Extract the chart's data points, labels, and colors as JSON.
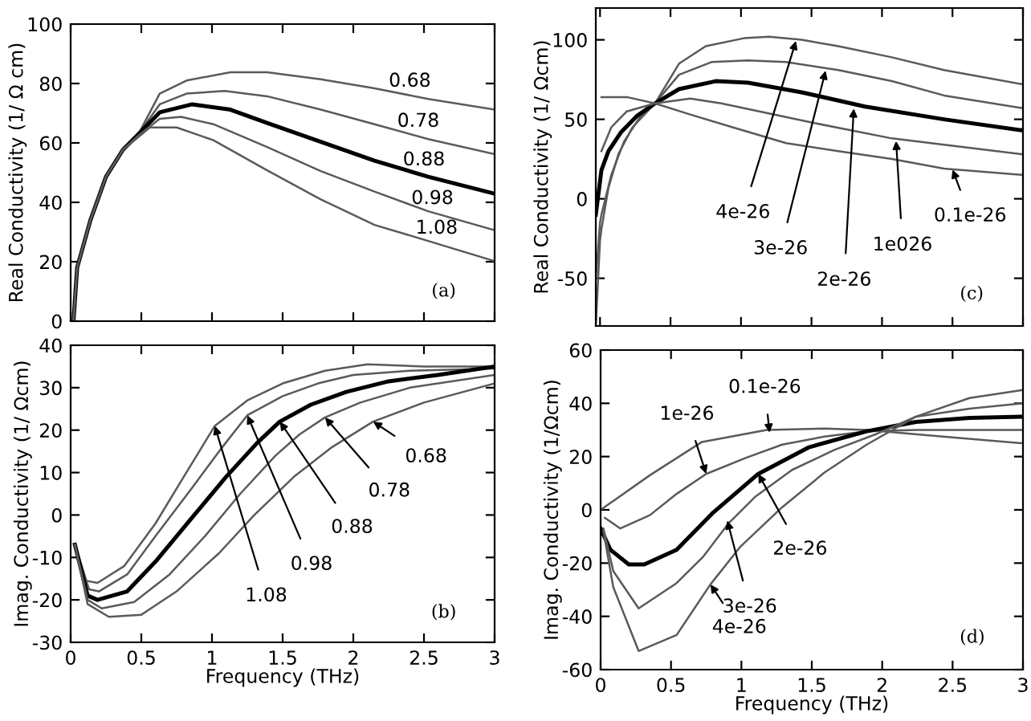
{
  "chart_data": [
    {
      "type": "line",
      "ylabel": "Real Conductivity (1/ Ω cm)",
      "xlim": [
        0,
        3
      ],
      "ylim": [
        0,
        100
      ],
      "xticks": [
        0,
        0.5,
        1,
        1.5,
        2,
        2.5,
        3
      ],
      "yticks": [
        0,
        20,
        40,
        60,
        80,
        100
      ],
      "tick_labels": "y",
      "series": [
        {
          "color": "#5a5a5a",
          "x": [
            0.02,
            0.046,
            0.14,
            0.25,
            0.37,
            0.48,
            0.63,
            0.82,
            1.13,
            1.39,
            1.77,
            2.15,
            2.53,
            3
          ],
          "values": [
            0,
            18,
            34,
            48.6,
            57.7,
            63,
            76.6,
            81,
            83.8,
            83.8,
            81.4,
            78.4,
            74.8,
            71.2
          ]
        },
        {
          "color": "#5a5a5a",
          "x": [
            0.02,
            0.046,
            0.14,
            0.25,
            0.37,
            0.48,
            0.63,
            0.82,
            1.09,
            1.39,
            1.77,
            2.15,
            2.53,
            3
          ],
          "values": [
            0,
            18,
            34,
            48.6,
            57.7,
            63,
            73,
            76.6,
            77.5,
            75.7,
            71.2,
            66.3,
            61.3,
            56.2
          ]
        },
        {
          "color": "#000000",
          "x": [
            0.02,
            0.046,
            0.14,
            0.25,
            0.37,
            0.48,
            0.63,
            0.86,
            1.13,
            1.39,
            1.77,
            2.15,
            2.53,
            3
          ],
          "values": [
            0,
            18,
            34,
            48.6,
            57.7,
            63,
            70.3,
            73,
            71.2,
            66.7,
            60.4,
            54,
            48.6,
            42.9
          ]
        },
        {
          "color": "#5a5a5a",
          "x": [
            0.02,
            0.046,
            0.14,
            0.25,
            0.37,
            0.48,
            0.63,
            0.78,
            1.01,
            1.39,
            1.77,
            2.15,
            2.53,
            3
          ],
          "values": [
            0,
            18,
            34,
            48.6,
            57.7,
            62.5,
            68.1,
            68.8,
            66.3,
            58.6,
            50.5,
            43.6,
            37,
            30.6
          ]
        },
        {
          "color": "#5a5a5a",
          "x": [
            0.02,
            0.046,
            0.14,
            0.25,
            0.37,
            0.48,
            0.56,
            0.75,
            1.01,
            1.39,
            1.77,
            2.15,
            2.53,
            3
          ],
          "values": [
            0,
            18,
            34,
            48.6,
            57.7,
            62,
            65.2,
            65.2,
            60.9,
            50.8,
            41,
            32.4,
            27,
            20.2
          ]
        }
      ],
      "annotations": [
        "(a)",
        {
          "text": "0.68",
          "x": 2.4,
          "y": 76
        },
        {
          "text": "0.78",
          "x": 2.46,
          "y": 62.5
        },
        {
          "text": "0.88",
          "x": 2.5,
          "y": 49.5
        },
        {
          "text": "0.98",
          "x": 2.56,
          "y": 36.5
        },
        {
          "text": "1.08",
          "x": 2.59,
          "y": 26.5
        }
      ]
    },
    {
      "type": "line",
      "ylabel": "Real Conductivity (1/ Ωcm)",
      "xlim": [
        -0.03,
        3
      ],
      "ylim": [
        -80,
        120
      ],
      "xticks": [
        0,
        0.5,
        1,
        1.5,
        2,
        2.5,
        3
      ],
      "yticks": [
        -50,
        0,
        50,
        100
      ],
      "tick_labels": "y",
      "series": [
        {
          "color": "#5a5a5a",
          "x": [
            -0.03,
            0,
            0.01,
            0.06,
            0.13,
            0.23,
            0.39,
            0.56,
            0.75,
            1.02,
            1.2,
            1.43,
            1.69,
            2.07,
            2.44,
            3
          ],
          "values": [
            -80,
            -26,
            -19,
            7,
            28,
            45,
            60,
            85,
            96,
            101,
            102,
            100,
            96,
            89,
            81,
            72
          ]
        },
        {
          "color": "#5a5a5a",
          "x": [
            -0.03,
            0,
            0.01,
            0.08,
            0.17,
            0.28,
            0.39,
            0.56,
            0.79,
            1.05,
            1.32,
            1.69,
            2.07,
            2.44,
            3
          ],
          "values": [
            -50,
            -15,
            -10,
            15,
            36,
            51,
            60,
            78,
            86,
            87,
            86,
            81,
            74,
            65,
            57
          ]
        },
        {
          "color": "#000000",
          "x": [
            -0.03,
            0.01,
            0.06,
            0.15,
            0.26,
            0.39,
            0.56,
            0.82,
            1.05,
            1.43,
            1.88,
            2.44,
            3
          ],
          "values": [
            -10,
            18,
            30,
            42,
            52,
            60,
            69,
            74,
            73,
            67,
            58,
            50,
            43
          ]
        },
        {
          "color": "#5a5a5a",
          "x": [
            0.01,
            0.08,
            0.19,
            0.39,
            0.64,
            0.86,
            1.13,
            1.5,
            2.07,
            2.44,
            3
          ],
          "values": [
            30,
            45,
            55,
            60,
            63,
            60,
            55,
            48,
            38,
            34,
            28
          ]
        },
        {
          "color": "#5a5a5a",
          "x": [
            0.01,
            0.19,
            0.39,
            0.64,
            0.94,
            1.32,
            1.69,
            2.07,
            2.44,
            3
          ],
          "values": [
            64,
            64,
            60,
            53,
            45,
            35,
            30,
            25,
            19,
            15
          ]
        }
      ],
      "annotations": [
        "(c)",
        {
          "text": "4e-26",
          "x": 1.39,
          "y": 99.3
        },
        {
          "text": "3e-26",
          "x": 1.6,
          "y": 80.6
        },
        {
          "text": "2e-26",
          "x": 1.8,
          "y": 56.8
        },
        {
          "text": "1e026",
          "x": 2.1,
          "y": 36.4
        },
        {
          "text": "0.1e-26",
          "x": 2.5,
          "y": 18.4
        }
      ]
    },
    {
      "type": "line",
      "ylabel": "Imag. Conductivity (1/ Ωcm)",
      "xlabel": "Frequency (THz)",
      "xlim": [
        0,
        3
      ],
      "ylim": [
        -30,
        40
      ],
      "xticks": [
        0,
        0.5,
        1,
        1.5,
        2,
        2.5,
        3
      ],
      "yticks": [
        -30,
        -20,
        -10,
        0,
        10,
        20,
        30,
        40
      ],
      "series": [
        {
          "color": "#5a5a5a",
          "x": [
            0.03,
            0.11,
            0.19,
            0.38,
            0.6,
            0.8,
            1.02,
            1.25,
            1.5,
            1.8,
            2.1,
            2.5,
            3
          ],
          "values": [
            -7,
            -15.5,
            -16,
            -12,
            -2,
            9,
            21,
            27,
            31,
            34,
            35.5,
            35,
            35
          ]
        },
        {
          "color": "#5a5a5a",
          "x": [
            0.03,
            0.13,
            0.2,
            0.4,
            0.6,
            0.85,
            1.05,
            1.25,
            1.5,
            1.75,
            2,
            2.4,
            3
          ],
          "values": [
            -7,
            -17.5,
            -18,
            -14,
            -5,
            6,
            15,
            23.5,
            28,
            31,
            33,
            34,
            34.5
          ]
        },
        {
          "color": "#000000",
          "x": [
            0.03,
            0.12,
            0.19,
            0.4,
            0.6,
            0.85,
            1.1,
            1.32,
            1.48,
            1.7,
            1.95,
            2.25,
            2.6,
            3
          ],
          "values": [
            -7,
            -19,
            -20,
            -18,
            -11,
            -1,
            9,
            17,
            22,
            26,
            29,
            31.5,
            33,
            35
          ]
        },
        {
          "color": "#5a5a5a",
          "x": [
            0.03,
            0.12,
            0.22,
            0.45,
            0.7,
            0.95,
            1.2,
            1.45,
            1.62,
            1.8,
            2.05,
            2.4,
            3
          ],
          "values": [
            -7,
            -20,
            -22,
            -20.5,
            -14,
            -5,
            5,
            14,
            19,
            23,
            26.5,
            30,
            33
          ]
        },
        {
          "color": "#5a5a5a",
          "x": [
            0.03,
            0.12,
            0.27,
            0.5,
            0.75,
            1.05,
            1.3,
            1.58,
            1.85,
            2.14,
            2.5,
            3
          ],
          "values": [
            -7,
            -21,
            -24,
            -23.5,
            -18,
            -9,
            0,
            9,
            16,
            22,
            26.5,
            31
          ]
        }
      ],
      "annotations": [
        "(b)",
        {
          "text": "1.08",
          "x": 1.02,
          "y": 21
        },
        {
          "text": "0.98",
          "x": 1.25,
          "y": 23.5
        },
        {
          "text": "0.88",
          "x": 1.48,
          "y": 22
        },
        {
          "text": "0.78",
          "x": 1.8,
          "y": 23
        },
        {
          "text": "0.68",
          "x": 2.14,
          "y": 22
        }
      ]
    },
    {
      "type": "line",
      "ylabel": "Imag. Conductivity (1/Ωcm)",
      "xlabel": "Frequency (THz)",
      "xlim": [
        0,
        3
      ],
      "ylim": [
        -60,
        60
      ],
      "xticks": [
        0,
        0.5,
        1,
        1.5,
        2,
        2.5,
        3
      ],
      "yticks": [
        -60,
        -40,
        -20,
        0,
        20,
        40,
        60
      ],
      "series": [
        {
          "color": "#5a5a5a",
          "x": [
            0,
            0.35,
            0.72,
            1.18,
            1.59,
            1.89,
            2.43,
            3
          ],
          "values": [
            0,
            13,
            25.5,
            30,
            30.5,
            30,
            27.5,
            25
          ]
        },
        {
          "color": "#5a5a5a",
          "x": [
            0.03,
            0.14,
            0.35,
            0.54,
            0.75,
            1.03,
            1.29,
            1.59,
            1.89,
            2.24,
            3
          ],
          "values": [
            -3,
            -7,
            -2,
            6,
            13.5,
            19.5,
            24.5,
            27.5,
            29.5,
            30,
            30
          ]
        },
        {
          "color": "#000000",
          "x": [
            0,
            0.07,
            0.2,
            0.31,
            0.54,
            0.8,
            1.12,
            1.48,
            1.89,
            2.24,
            2.62,
            3
          ],
          "values": [
            -7,
            -15,
            -20.5,
            -20.5,
            -15,
            -1,
            13.5,
            23.5,
            29.5,
            33,
            34.5,
            35
          ]
        },
        {
          "color": "#5a5a5a",
          "x": [
            0.02,
            0.09,
            0.27,
            0.54,
            0.73,
            0.91,
            1.1,
            1.36,
            1.66,
            1.96,
            2.24,
            2.62,
            3
          ],
          "values": [
            -7,
            -23,
            -37,
            -27.5,
            -17.5,
            -5,
            5,
            15,
            22.5,
            28.5,
            35,
            38,
            40
          ]
        },
        {
          "color": "#5a5a5a",
          "x": [
            0.02,
            0.09,
            0.27,
            0.54,
            0.78,
            0.99,
            1.29,
            1.59,
            1.89,
            2.24,
            2.62,
            3
          ],
          "values": [
            -8,
            -29,
            -53,
            -47,
            -28,
            -14,
            1,
            14,
            24.5,
            35,
            42,
            45
          ]
        }
      ],
      "annotations": [
        "(d)",
        {
          "text": "0.1e-26",
          "x": 1.2,
          "y": 29
        },
        {
          "text": "1e-26",
          "x": 0.75,
          "y": 13.5
        },
        {
          "text": "2e-26",
          "x": 1.12,
          "y": 13.5
        },
        {
          "text": "3e-26",
          "x": 0.9,
          "y": -4
        },
        {
          "text": "4e-26",
          "x": 0.78,
          "y": -28
        }
      ]
    }
  ]
}
